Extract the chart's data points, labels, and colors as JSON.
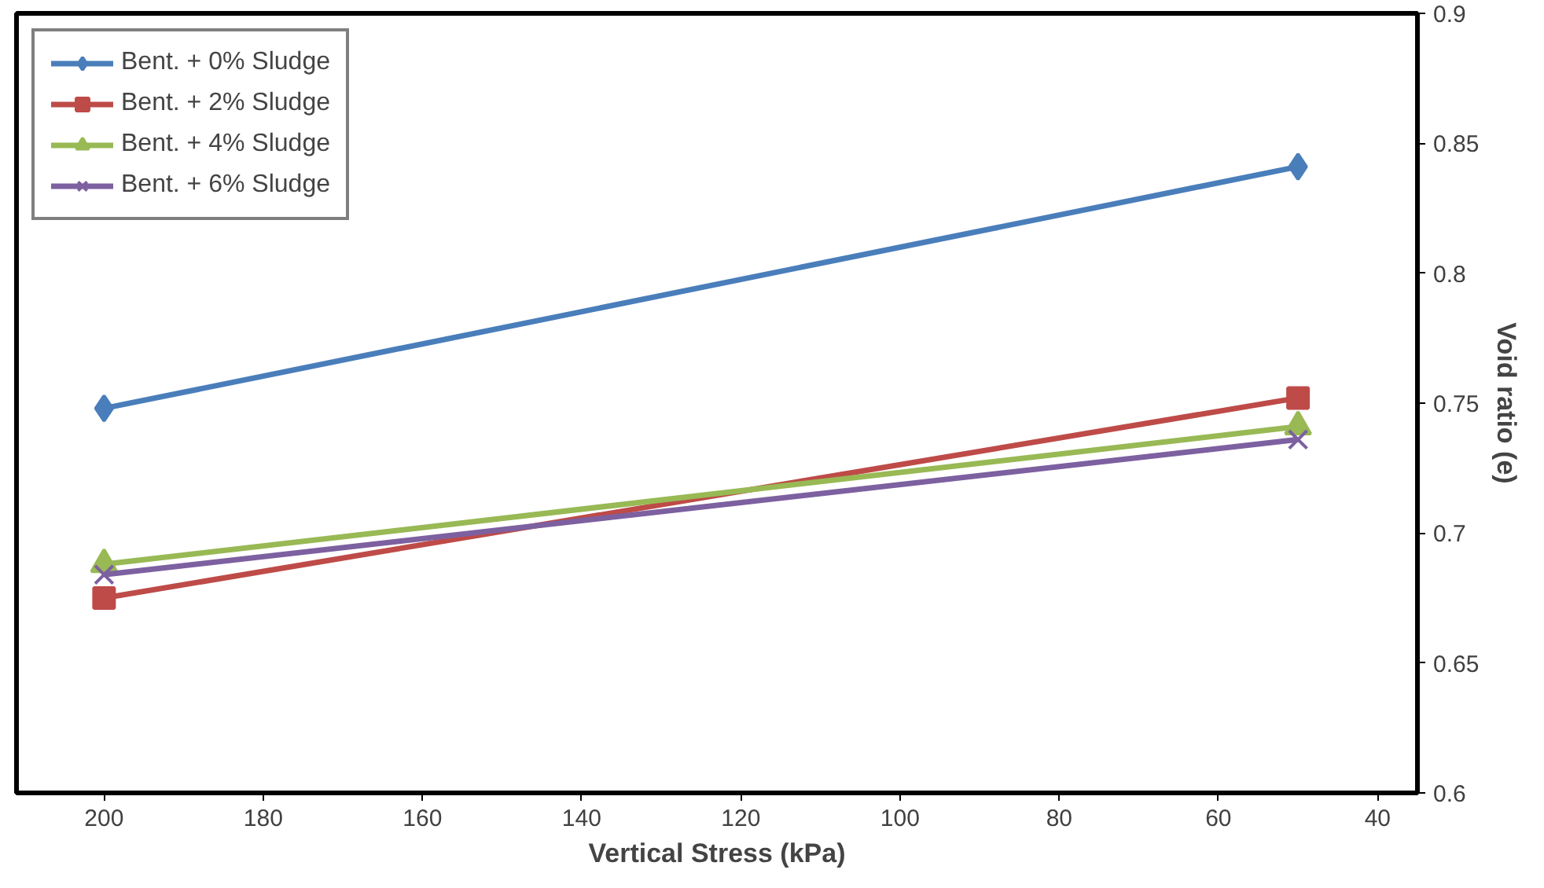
{
  "chart_data": {
    "type": "line",
    "xlabel": "Vertical Stress (kPa)",
    "ylabel": "Void ratio (e)",
    "x": [
      200,
      50
    ],
    "xlim": [
      211,
      35
    ],
    "xticks": [
      200,
      180,
      160,
      140,
      120,
      100,
      80,
      60,
      40
    ],
    "ylim": [
      0.6,
      0.9
    ],
    "yticks": [
      0.6,
      0.65,
      0.7,
      0.75,
      0.8,
      0.85,
      0.9
    ],
    "grid": false,
    "legend": "top left",
    "line_style": "solid",
    "series": [
      {
        "name": "Bent. + 0% Sludge",
        "color": "#4a7ebb",
        "marker": "diamond",
        "values": [
          0.748,
          0.841
        ]
      },
      {
        "name": "Bent. + 2% Sludge",
        "color": "#be4b48",
        "marker": "square",
        "values": [
          0.675,
          0.752
        ]
      },
      {
        "name": "Bent. + 4% Sludge",
        "color": "#98b954",
        "marker": "triangle",
        "values": [
          0.688,
          0.741
        ]
      },
      {
        "name": "Bent. + 6% Sludge",
        "color": "#7d60a0",
        "marker": "cross",
        "values": [
          0.684,
          0.736
        ]
      }
    ]
  }
}
